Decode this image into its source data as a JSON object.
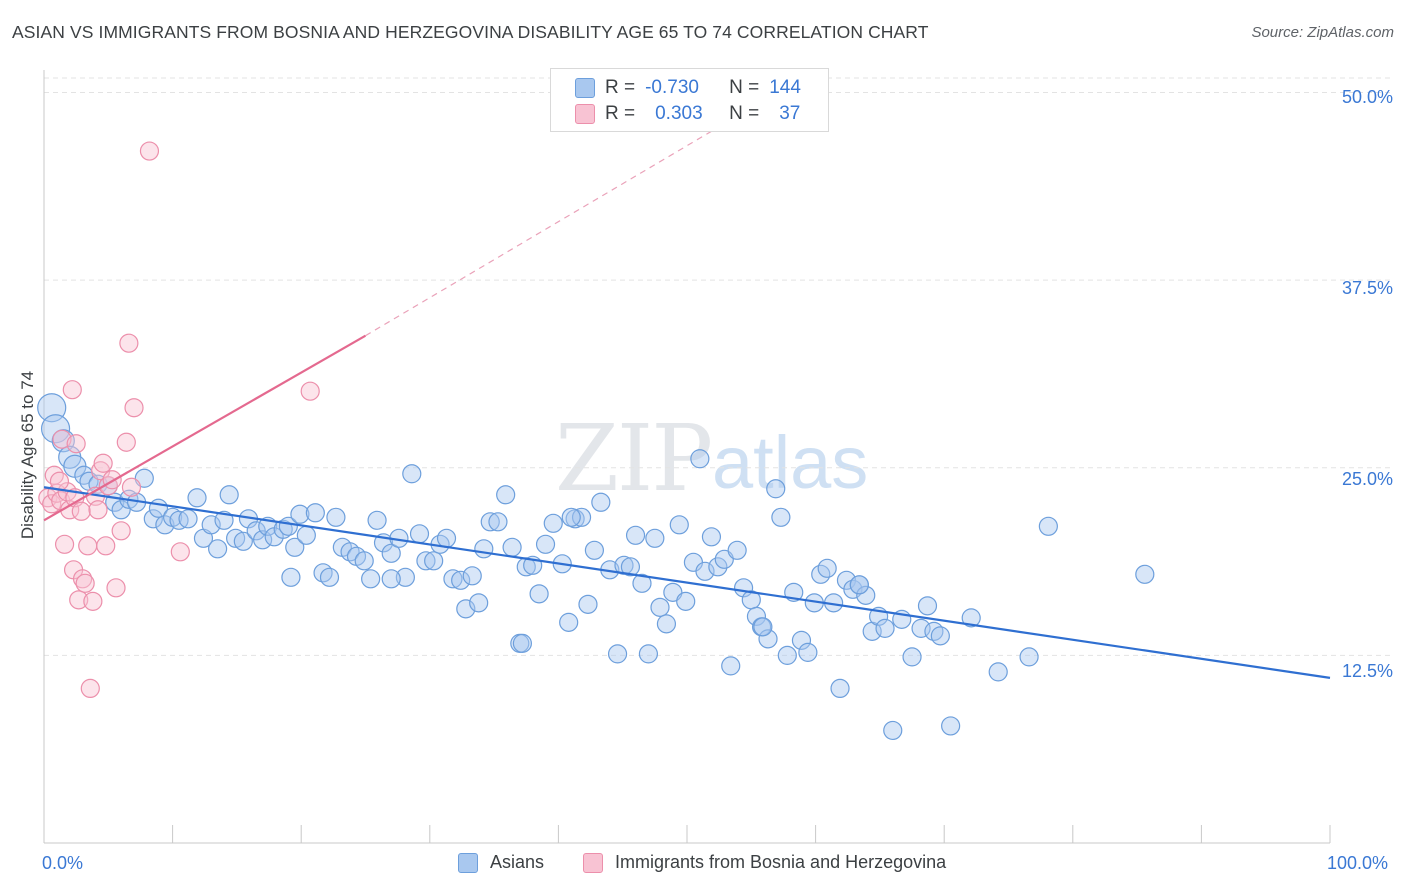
{
  "title": "ASIAN VS IMMIGRANTS FROM BOSNIA AND HERZEGOVINA DISABILITY AGE 65 TO 74 CORRELATION CHART",
  "source": "Source: ZipAtlas.com",
  "watermark": {
    "zip": "ZIP",
    "atlas": "atlas"
  },
  "legend_stats": [
    {
      "r_label": "R =",
      "r_value": "-0.730",
      "n_label": "N =",
      "n_value": "144",
      "color": "#a9c8ef",
      "border": "#6d9fdc"
    },
    {
      "r_label": "R =",
      "r_value": "0.303",
      "n_label": "N =",
      "n_value": "37",
      "color": "#f8c3d3",
      "border": "#ec8fab"
    }
  ],
  "bottom_legend": [
    {
      "label": "Asians",
      "color": "#a9c8ef",
      "border": "#6d9fdc"
    },
    {
      "label": "Immigrants from Bosnia and Herzegovina",
      "color": "#f8c3d3",
      "border": "#ec8fab"
    }
  ],
  "chart_data": {
    "type": "scatter",
    "title": "ASIAN VS IMMIGRANTS FROM BOSNIA AND HERZEGOVINA DISABILITY AGE 65 TO 74 CORRELATION CHART",
    "xlabel": "",
    "ylabel": "Disability Age 65 to 74",
    "xlim": [
      0,
      100
    ],
    "ylim": [
      0,
      51.5
    ],
    "x_tick_labels": [
      "0.0%",
      "100.0%"
    ],
    "y_ticks": [
      12.5,
      25.0,
      37.5,
      50.0
    ],
    "y_tick_labels": [
      "12.5%",
      "25.0%",
      "37.5%",
      "50.0%"
    ],
    "grid": true,
    "series": [
      {
        "name": "Asians",
        "color": "#6d9fdc",
        "fill": "#a9c8ef",
        "line_color": "#2f6fd1",
        "trend": {
          "x": [
            0,
            100
          ],
          "y": [
            23.7,
            11.0
          ]
        },
        "points": [
          [
            0.6,
            29.0
          ],
          [
            0.9,
            27.6
          ],
          [
            1.5,
            26.8
          ],
          [
            2.0,
            25.7
          ],
          [
            2.4,
            25.1
          ],
          [
            3.1,
            24.5
          ],
          [
            3.5,
            24.1
          ],
          [
            4.2,
            23.9
          ],
          [
            5.0,
            23.8
          ],
          [
            5.5,
            22.7
          ],
          [
            6.0,
            22.2
          ],
          [
            6.6,
            22.9
          ],
          [
            7.2,
            22.7
          ],
          [
            7.8,
            24.3
          ],
          [
            8.5,
            21.6
          ],
          [
            8.9,
            22.3
          ],
          [
            9.4,
            21.2
          ],
          [
            10.0,
            21.7
          ],
          [
            10.5,
            21.5
          ],
          [
            11.2,
            21.6
          ],
          [
            11.9,
            23.0
          ],
          [
            12.4,
            20.3
          ],
          [
            13.0,
            21.2
          ],
          [
            13.5,
            19.6
          ],
          [
            14.0,
            21.5
          ],
          [
            14.4,
            23.2
          ],
          [
            14.9,
            20.3
          ],
          [
            15.5,
            20.1
          ],
          [
            15.9,
            21.6
          ],
          [
            16.5,
            20.8
          ],
          [
            17.0,
            20.2
          ],
          [
            17.4,
            21.1
          ],
          [
            17.9,
            20.4
          ],
          [
            18.6,
            20.9
          ],
          [
            19.0,
            21.1
          ],
          [
            19.5,
            19.7
          ],
          [
            19.9,
            21.9
          ],
          [
            20.4,
            20.5
          ],
          [
            21.1,
            22.0
          ],
          [
            21.7,
            18.0
          ],
          [
            22.2,
            17.7
          ],
          [
            22.7,
            21.7
          ],
          [
            23.2,
            19.7
          ],
          [
            23.8,
            19.4
          ],
          [
            24.3,
            19.1
          ],
          [
            24.9,
            18.8
          ],
          [
            25.4,
            17.6
          ],
          [
            25.9,
            21.5
          ],
          [
            26.4,
            20.0
          ],
          [
            27.0,
            19.3
          ],
          [
            27.6,
            20.3
          ],
          [
            28.1,
            17.7
          ],
          [
            28.6,
            24.6
          ],
          [
            29.2,
            20.6
          ],
          [
            29.7,
            18.8
          ],
          [
            30.3,
            18.8
          ],
          [
            30.8,
            19.9
          ],
          [
            31.3,
            20.3
          ],
          [
            31.8,
            17.6
          ],
          [
            32.4,
            17.5
          ],
          [
            32.8,
            15.6
          ],
          [
            33.3,
            17.8
          ],
          [
            33.8,
            16.0
          ],
          [
            34.2,
            19.6
          ],
          [
            34.7,
            21.4
          ],
          [
            35.3,
            21.4
          ],
          [
            35.9,
            23.2
          ],
          [
            36.4,
            19.7
          ],
          [
            37.0,
            13.3
          ],
          [
            37.5,
            18.4
          ],
          [
            38.0,
            18.5
          ],
          [
            38.5,
            16.6
          ],
          [
            39.0,
            19.9
          ],
          [
            39.6,
            21.3
          ],
          [
            40.3,
            18.6
          ],
          [
            40.8,
            14.7
          ],
          [
            41.3,
            21.6
          ],
          [
            41.8,
            21.7
          ],
          [
            42.3,
            15.9
          ],
          [
            42.8,
            19.5
          ],
          [
            43.3,
            22.7
          ],
          [
            44.0,
            18.2
          ],
          [
            44.6,
            12.6
          ],
          [
            45.1,
            18.5
          ],
          [
            45.6,
            18.4
          ],
          [
            46.0,
            20.5
          ],
          [
            46.5,
            17.3
          ],
          [
            47.0,
            12.6
          ],
          [
            47.5,
            20.3
          ],
          [
            47.9,
            15.7
          ],
          [
            48.4,
            14.6
          ],
          [
            48.9,
            16.7
          ],
          [
            49.4,
            21.2
          ],
          [
            49.9,
            16.1
          ],
          [
            50.5,
            18.7
          ],
          [
            51.0,
            25.6
          ],
          [
            51.4,
            18.1
          ],
          [
            51.9,
            20.4
          ],
          [
            52.4,
            18.4
          ],
          [
            52.9,
            18.9
          ],
          [
            53.4,
            11.8
          ],
          [
            53.9,
            19.5
          ],
          [
            54.4,
            17.0
          ],
          [
            55.0,
            16.2
          ],
          [
            55.4,
            15.1
          ],
          [
            55.8,
            14.4
          ],
          [
            56.3,
            13.6
          ],
          [
            56.9,
            23.6
          ],
          [
            57.3,
            21.7
          ],
          [
            57.8,
            12.5
          ],
          [
            58.3,
            16.7
          ],
          [
            58.9,
            13.5
          ],
          [
            59.4,
            12.7
          ],
          [
            59.9,
            16.0
          ],
          [
            60.4,
            17.9
          ],
          [
            60.9,
            18.3
          ],
          [
            61.4,
            16.0
          ],
          [
            61.9,
            10.3
          ],
          [
            62.4,
            17.5
          ],
          [
            62.9,
            16.9
          ],
          [
            63.4,
            17.2
          ],
          [
            63.9,
            16.5
          ],
          [
            64.4,
            14.1
          ],
          [
            64.9,
            15.1
          ],
          [
            65.4,
            14.3
          ],
          [
            66.0,
            7.5
          ],
          [
            66.7,
            14.9
          ],
          [
            67.5,
            12.4
          ],
          [
            68.2,
            14.3
          ],
          [
            68.7,
            15.8
          ],
          [
            69.2,
            14.1
          ],
          [
            69.7,
            13.8
          ],
          [
            70.5,
            7.8
          ],
          [
            72.1,
            15.0
          ],
          [
            74.2,
            11.4
          ],
          [
            76.6,
            12.4
          ],
          [
            78.1,
            21.1
          ],
          [
            85.6,
            17.9
          ],
          [
            63.4,
            17.2
          ],
          [
            55.9,
            14.4
          ],
          [
            41.0,
            21.7
          ],
          [
            37.2,
            13.3
          ],
          [
            27.0,
            17.6
          ],
          [
            19.2,
            17.7
          ]
        ]
      },
      {
        "name": "Immigrants from Bosnia and Herzegovina",
        "color": "#ec8fab",
        "fill": "#f8c3d3",
        "line_color": "#e4698f",
        "trend": {
          "x": [
            0,
            25
          ],
          "y": [
            21.5,
            33.8
          ]
        },
        "trend_dashed": {
          "x": [
            25,
            57
          ],
          "y": [
            33.8,
            50.0
          ]
        },
        "points": [
          [
            0.3,
            23.0
          ],
          [
            0.6,
            22.6
          ],
          [
            0.8,
            24.5
          ],
          [
            1.0,
            23.3
          ],
          [
            1.3,
            22.8
          ],
          [
            1.4,
            26.9
          ],
          [
            1.6,
            19.9
          ],
          [
            1.8,
            23.4
          ],
          [
            2.0,
            22.2
          ],
          [
            2.2,
            30.2
          ],
          [
            2.3,
            18.2
          ],
          [
            2.4,
            23.0
          ],
          [
            2.5,
            26.6
          ],
          [
            2.7,
            16.2
          ],
          [
            2.9,
            22.1
          ],
          [
            3.0,
            17.6
          ],
          [
            3.2,
            17.3
          ],
          [
            3.4,
            19.8
          ],
          [
            3.6,
            10.3
          ],
          [
            3.8,
            16.1
          ],
          [
            4.0,
            23.1
          ],
          [
            4.2,
            22.2
          ],
          [
            4.4,
            24.8
          ],
          [
            4.6,
            25.3
          ],
          [
            4.8,
            19.8
          ],
          [
            5.0,
            23.8
          ],
          [
            5.3,
            24.2
          ],
          [
            5.6,
            17.0
          ],
          [
            6.0,
            20.8
          ],
          [
            6.4,
            26.7
          ],
          [
            6.6,
            33.3
          ],
          [
            6.8,
            23.7
          ],
          [
            7.0,
            29.0
          ],
          [
            8.2,
            46.1
          ],
          [
            10.6,
            19.4
          ],
          [
            20.7,
            30.1
          ],
          [
            1.2,
            24.1
          ]
        ]
      }
    ]
  }
}
